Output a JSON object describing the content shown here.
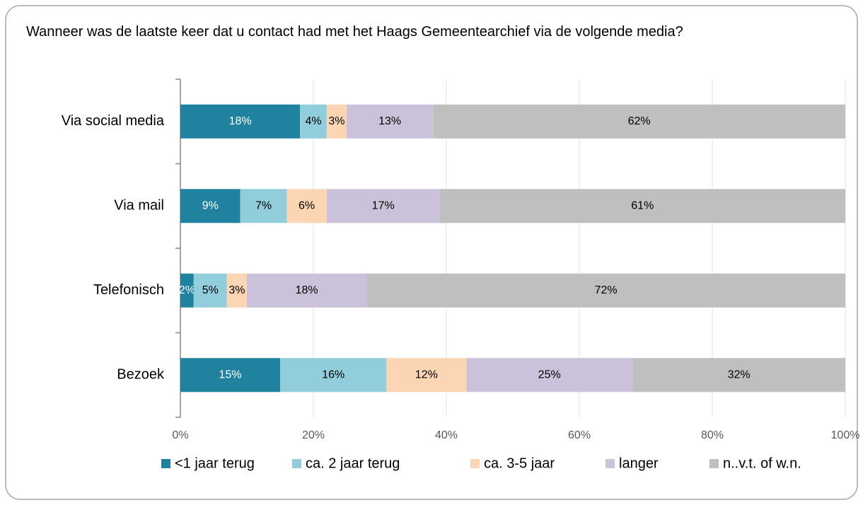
{
  "chart_data": {
    "type": "stacked-bar-horizontal",
    "title": "Wanneer was de laatste keer dat u contact had met het Haags Gemeentearchief via de volgende media?",
    "categories": [
      "Via social media",
      "Via mail",
      "Telefonisch",
      "Bezoek"
    ],
    "series": [
      {
        "name": "<1 jaar terug",
        "color": "#21829f",
        "values": [
          18,
          9,
          2,
          15
        ],
        "value_labels": [
          "18%",
          "9%",
          "2%",
          "15%"
        ]
      },
      {
        "name": "ca. 2 jaar terug",
        "color": "#92cddc",
        "values": [
          4,
          7,
          5,
          16
        ],
        "value_labels": [
          "4%",
          "7%",
          "5%",
          "16%"
        ]
      },
      {
        "name": "ca. 3-5 jaar",
        "color": "#fcd5b5",
        "values": [
          3,
          6,
          3,
          12
        ],
        "value_labels": [
          "3%",
          "6%",
          "3%",
          "12%"
        ]
      },
      {
        "name": "langer",
        "color": "#ccc1da",
        "values": [
          13,
          17,
          18,
          25
        ],
        "value_labels": [
          "13%",
          "17%",
          "18%",
          "25%"
        ]
      },
      {
        "name": "n..v.t. of w.n.",
        "color": "#bfbfbf",
        "values": [
          62,
          61,
          72,
          32
        ],
        "value_labels": [
          "62%",
          "61%",
          "72%",
          "32%"
        ]
      }
    ],
    "xlim": [
      0,
      100
    ],
    "xticks": [
      {
        "value": 0,
        "label": "0%"
      },
      {
        "value": 20,
        "label": "20%"
      },
      {
        "value": 40,
        "label": "40%"
      },
      {
        "value": 60,
        "label": "60%"
      },
      {
        "value": 80,
        "label": "80%"
      },
      {
        "value": 100,
        "label": "100%"
      }
    ],
    "grid": true,
    "legend": "bottom"
  }
}
